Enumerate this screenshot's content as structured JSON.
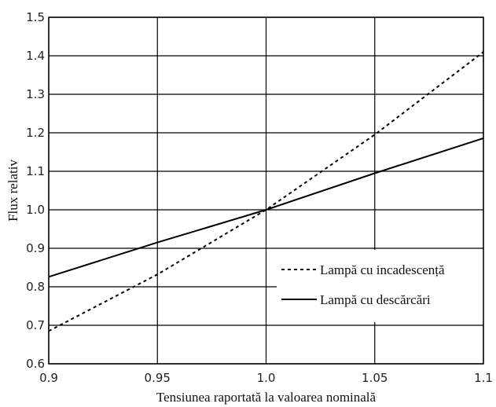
{
  "chart_data": {
    "type": "line",
    "xlabel": "Tensiunea raportată la valoarea nominală",
    "ylabel": "Flux relativ",
    "xlim": [
      0.9,
      1.1
    ],
    "ylim": [
      0.6,
      1.5
    ],
    "xticks": [
      "0.9",
      "0.95",
      "1.0",
      "1.05",
      "1.1"
    ],
    "yticks": [
      "0.6",
      "0.7",
      "0.8",
      "0.9",
      "1.0",
      "1.1",
      "1.2",
      "1.3",
      "1.4",
      "1.5"
    ],
    "grid": true,
    "legend_position": "center-right",
    "series": [
      {
        "name": "Lampă cu incadescență",
        "style": "dotted",
        "color": "#000000",
        "x": [
          0.9,
          0.95,
          1.0,
          1.05,
          1.1
        ],
        "y": [
          0.685,
          0.832,
          1.0,
          1.195,
          1.41
        ]
      },
      {
        "name": "Lampă cu descărcări",
        "style": "solid",
        "color": "#000000",
        "x": [
          0.9,
          0.95,
          1.0,
          1.05,
          1.1
        ],
        "y": [
          0.826,
          0.915,
          1.0,
          1.095,
          1.186
        ]
      }
    ]
  }
}
